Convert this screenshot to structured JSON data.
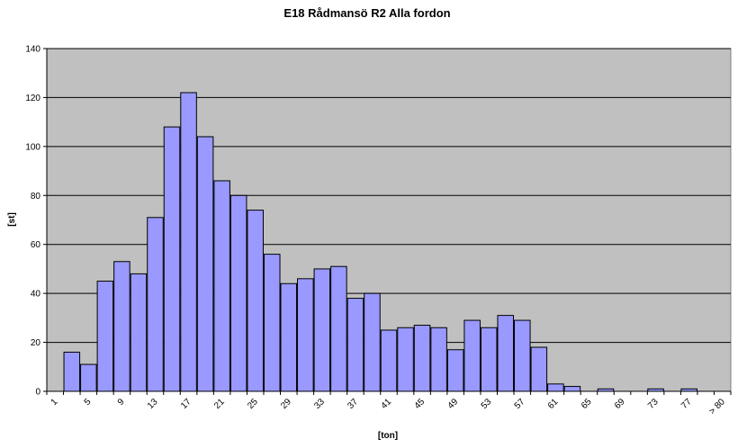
{
  "chart_data": {
    "type": "bar",
    "title": "E18 Rådmansö R2 Alla fordon",
    "xlabel": "[ton]",
    "ylabel": "[st]",
    "ylim": [
      0,
      140
    ],
    "yticks": [
      0,
      20,
      40,
      60,
      80,
      100,
      120,
      140
    ],
    "grid": true,
    "colors": {
      "plot_background": "#c0c0c0",
      "bar_fill": "#9999ff",
      "bar_stroke": "#000000",
      "gridline": "#000000"
    },
    "categories": [
      "1",
      "3",
      "5",
      "7",
      "9",
      "11",
      "13",
      "15",
      "17",
      "19",
      "21",
      "23",
      "25",
      "27",
      "29",
      "31",
      "33",
      "35",
      "37",
      "39",
      "41",
      "43",
      "45",
      "47",
      "49",
      "51",
      "53",
      "55",
      "57",
      "59",
      "61",
      "63",
      "65",
      "67",
      "69",
      "71",
      "73",
      "75",
      "77",
      "79",
      "> 80"
    ],
    "tick_labels": [
      "1",
      "",
      "5",
      "",
      "9",
      "",
      "13",
      "",
      "17",
      "",
      "21",
      "",
      "25",
      "",
      "29",
      "",
      "33",
      "",
      "37",
      "",
      "41",
      "",
      "45",
      "",
      "49",
      "",
      "53",
      "",
      "57",
      "",
      "61",
      "",
      "65",
      "",
      "69",
      "",
      "73",
      "",
      "77",
      "",
      "> 80"
    ],
    "values": [
      0,
      16,
      11,
      45,
      53,
      48,
      71,
      108,
      122,
      104,
      86,
      80,
      74,
      56,
      44,
      46,
      50,
      51,
      38,
      40,
      25,
      26,
      27,
      26,
      17,
      29,
      26,
      31,
      29,
      18,
      3,
      2,
      0,
      1,
      0,
      0,
      1,
      0,
      1,
      0,
      0
    ]
  }
}
